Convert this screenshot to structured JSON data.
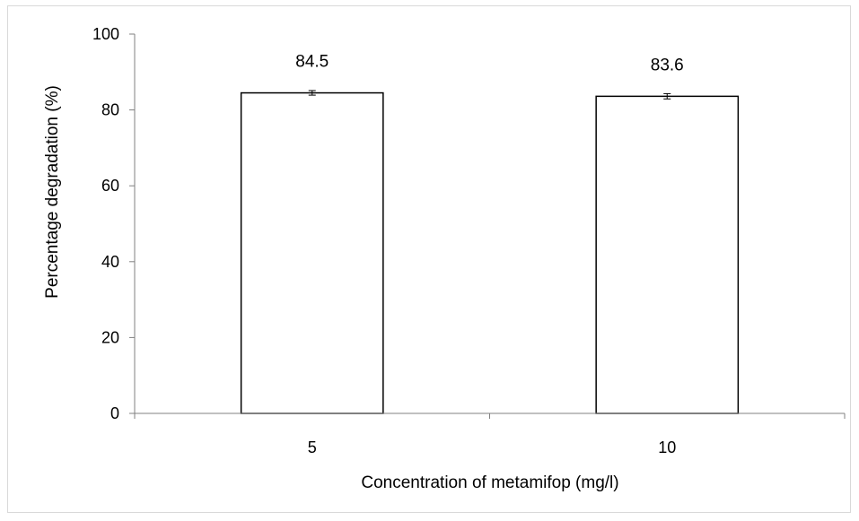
{
  "chart_data": {
    "type": "bar",
    "categories": [
      "5",
      "10"
    ],
    "values": [
      84.5,
      83.6
    ],
    "error": [
      0.6,
      0.7
    ],
    "data_labels": [
      "84.5",
      "83.6"
    ],
    "title": "",
    "xlabel": "Concentration of metamifop (mg/l)",
    "ylabel": "Percentage degradation (%)",
    "ylim": [
      0,
      100
    ],
    "yticks": [
      "0",
      "20",
      "40",
      "60",
      "80",
      "100"
    ],
    "grid": false,
    "legend": "none",
    "bar_fill": "#ffffff",
    "bar_stroke": "#000000",
    "axis_color": "#808080"
  }
}
